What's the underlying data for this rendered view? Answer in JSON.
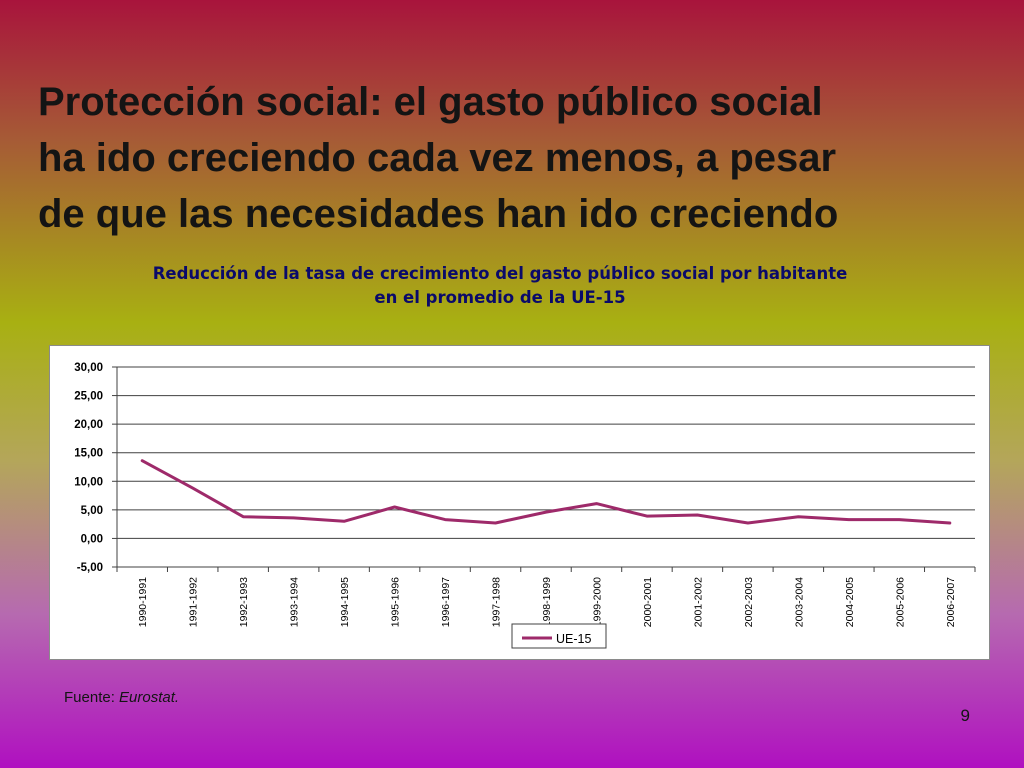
{
  "slide": {
    "title_lines": [
      "Protección social: el gasto público social",
      "ha ido creciendo cada vez menos, a pesar",
      "de que las necesidades han ido creciendo"
    ],
    "page_number": "9"
  },
  "source": {
    "label": "Fuente:",
    "value": "Eurostat."
  },
  "chart_data": {
    "type": "line",
    "title_lines": [
      "Reducción de la tasa de crecimiento del gasto público social por habitante",
      "en el promedio de la UE-15"
    ],
    "categories": [
      "1990-1991",
      "1991-1992",
      "1992-1993",
      "1993-1994",
      "1994-1995",
      "1995-1996",
      "1996-1997",
      "1997-1998",
      "1998-1999",
      "1999-2000",
      "2000-2001",
      "2001-2002",
      "2002-2003",
      "2003-2004",
      "2004-2005",
      "2005-2006",
      "2006-2007"
    ],
    "series": [
      {
        "name": "UE-15",
        "color": "#9e2a6a",
        "values": [
          13.6,
          8.8,
          3.8,
          3.6,
          3.0,
          5.5,
          3.3,
          2.7,
          4.6,
          6.1,
          3.9,
          4.1,
          2.7,
          3.8,
          3.3,
          3.3,
          2.7
        ]
      }
    ],
    "ylim": [
      -5,
      30
    ],
    "yticks": [
      "30,00",
      "25,00",
      "20,00",
      "15,00",
      "10,00",
      "5,00",
      "0,00",
      "-5,00"
    ],
    "grid": true,
    "legend": "bottom"
  }
}
